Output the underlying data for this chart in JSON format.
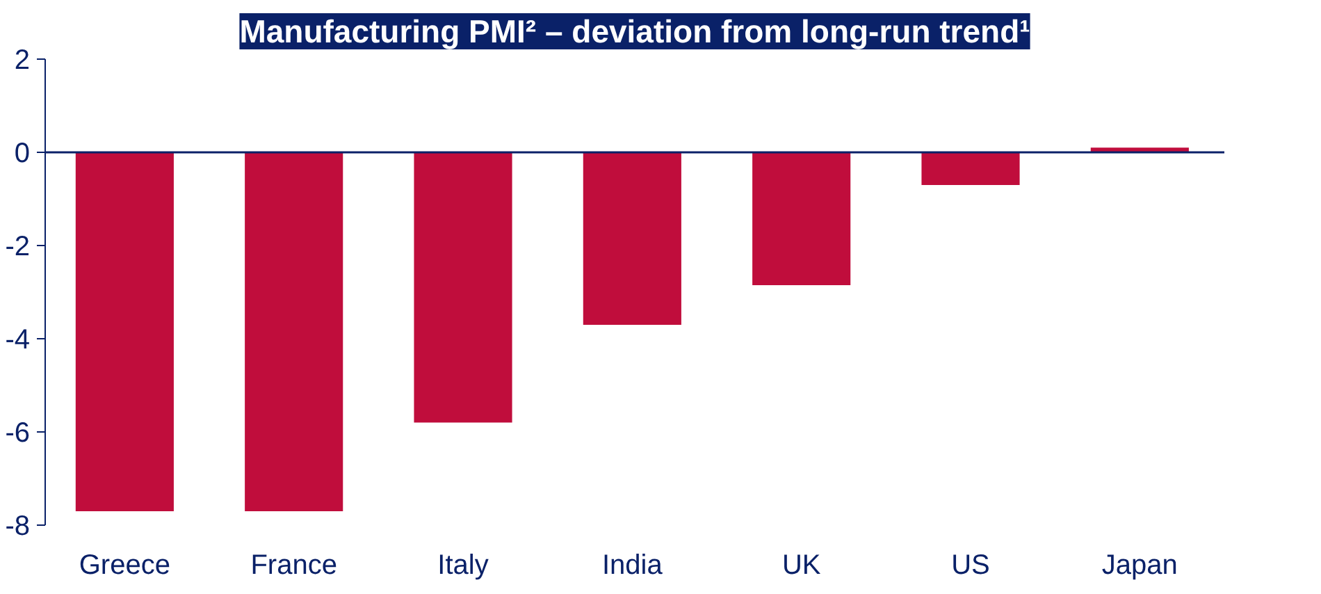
{
  "chart_data": {
    "type": "bar",
    "title": "Manufacturing PMI² – deviation from long-run trend¹",
    "categories": [
      "Greece",
      "France",
      "Italy",
      "India",
      "UK",
      "US",
      "Japan"
    ],
    "values": [
      -7.7,
      -7.7,
      -5.8,
      -3.7,
      -2.85,
      -0.7,
      0.1
    ],
    "color": "#c00d3c",
    "ylim": [
      -8,
      2
    ],
    "yticks": [
      2,
      0,
      -2,
      -4,
      -6,
      -8
    ],
    "grid": false,
    "ref_lines": [
      {
        "axis": "y",
        "value": 0,
        "color": "#0a2168"
      }
    ]
  }
}
